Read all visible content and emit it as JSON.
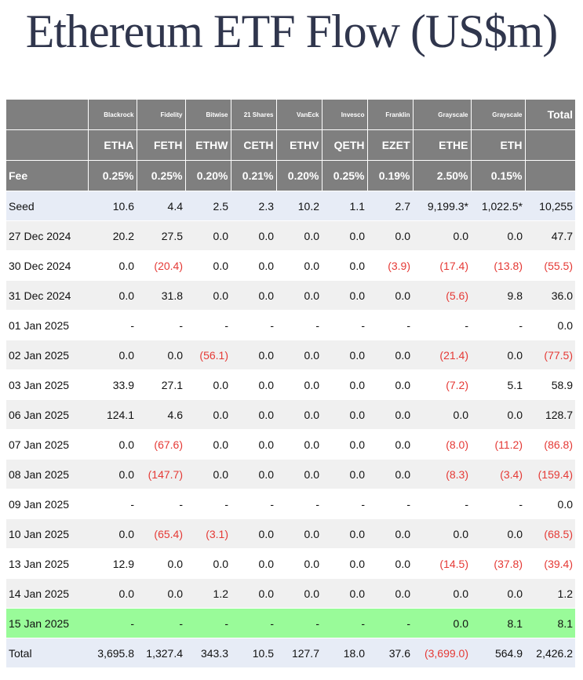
{
  "chart_data": {
    "type": "table",
    "title": "Ethereum ETF Flow (US$m)",
    "header": {
      "issuers": [
        "Blackrock",
        "Fidelity",
        "Bitwise",
        "21 Shares",
        "VanEck",
        "Invesco",
        "Franklin",
        "Grayscale",
        "Grayscale"
      ],
      "total_label": "Total",
      "tickers": [
        "ETHA",
        "FETH",
        "ETHW",
        "CETH",
        "ETHV",
        "QETH",
        "EZET",
        "ETHE",
        "ETH"
      ],
      "fee_label": "Fee",
      "fees": [
        "0.25%",
        "0.25%",
        "0.20%",
        "0.21%",
        "0.20%",
        "0.25%",
        "0.19%",
        "2.50%",
        "0.15%"
      ]
    },
    "rows": [
      {
        "label": "Seed",
        "cells": [
          "10.6",
          "4.4",
          "2.5",
          "2.3",
          "10.2",
          "1.1",
          "2.7",
          "9,199.3*",
          "1,022.5*",
          "10,255"
        ]
      },
      {
        "label": "27 Dec 2024",
        "cells": [
          "20.2",
          "27.5",
          "0.0",
          "0.0",
          "0.0",
          "0.0",
          "0.0",
          "0.0",
          "0.0",
          "47.7"
        ]
      },
      {
        "label": "30 Dec 2024",
        "cells": [
          "0.0",
          "(20.4)",
          "0.0",
          "0.0",
          "0.0",
          "0.0",
          "(3.9)",
          "(17.4)",
          "(13.8)",
          "(55.5)"
        ]
      },
      {
        "label": "31 Dec 2024",
        "cells": [
          "0.0",
          "31.8",
          "0.0",
          "0.0",
          "0.0",
          "0.0",
          "0.0",
          "(5.6)",
          "9.8",
          "36.0"
        ]
      },
      {
        "label": "01 Jan 2025",
        "cells": [
          "-",
          "-",
          "-",
          "-",
          "-",
          "-",
          "-",
          "-",
          "-",
          "0.0"
        ]
      },
      {
        "label": "02 Jan 2025",
        "cells": [
          "0.0",
          "0.0",
          "(56.1)",
          "0.0",
          "0.0",
          "0.0",
          "0.0",
          "(21.4)",
          "0.0",
          "(77.5)"
        ]
      },
      {
        "label": "03 Jan 2025",
        "cells": [
          "33.9",
          "27.1",
          "0.0",
          "0.0",
          "0.0",
          "0.0",
          "0.0",
          "(7.2)",
          "5.1",
          "58.9"
        ]
      },
      {
        "label": "06 Jan 2025",
        "cells": [
          "124.1",
          "4.6",
          "0.0",
          "0.0",
          "0.0",
          "0.0",
          "0.0",
          "0.0",
          "0.0",
          "128.7"
        ]
      },
      {
        "label": "07 Jan 2025",
        "cells": [
          "0.0",
          "(67.6)",
          "0.0",
          "0.0",
          "0.0",
          "0.0",
          "0.0",
          "(8.0)",
          "(11.2)",
          "(86.8)"
        ]
      },
      {
        "label": "08 Jan 2025",
        "cells": [
          "0.0",
          "(147.7)",
          "0.0",
          "0.0",
          "0.0",
          "0.0",
          "0.0",
          "(8.3)",
          "(3.4)",
          "(159.4)"
        ]
      },
      {
        "label": "09 Jan 2025",
        "cells": [
          "-",
          "-",
          "-",
          "-",
          "-",
          "-",
          "-",
          "-",
          "-",
          "0.0"
        ]
      },
      {
        "label": "10 Jan 2025",
        "cells": [
          "0.0",
          "(65.4)",
          "(3.1)",
          "0.0",
          "0.0",
          "0.0",
          "0.0",
          "0.0",
          "0.0",
          "(68.5)"
        ]
      },
      {
        "label": "13 Jan 2025",
        "cells": [
          "12.9",
          "0.0",
          "0.0",
          "0.0",
          "0.0",
          "0.0",
          "0.0",
          "(14.5)",
          "(37.8)",
          "(39.4)"
        ]
      },
      {
        "label": "14 Jan 2025",
        "cells": [
          "0.0",
          "0.0",
          "1.2",
          "0.0",
          "0.0",
          "0.0",
          "0.0",
          "0.0",
          "0.0",
          "1.2"
        ]
      },
      {
        "label": "15 Jan 2025",
        "cells": [
          "-",
          "-",
          "-",
          "-",
          "-",
          "-",
          "-",
          "0.0",
          "8.1",
          "8.1"
        ],
        "highlight": true
      },
      {
        "label": "Total",
        "cells": [
          "3,695.8",
          "1,327.4",
          "343.3",
          "10.5",
          "127.7",
          "18.0",
          "37.6",
          "(3,699.0)",
          "564.9",
          "2,426.2"
        ],
        "total": true
      }
    ]
  },
  "colors": {
    "title": "#30364d",
    "header_bg": "#7f7f7f",
    "header_text": "#ffffff",
    "negative": "#e53935",
    "seed_row_bg": "#e7ecf6",
    "total_row_bg": "#e7ecf6",
    "highlight_row_bg": "#99fb99",
    "stripe_bg": "#f0f0f0"
  }
}
